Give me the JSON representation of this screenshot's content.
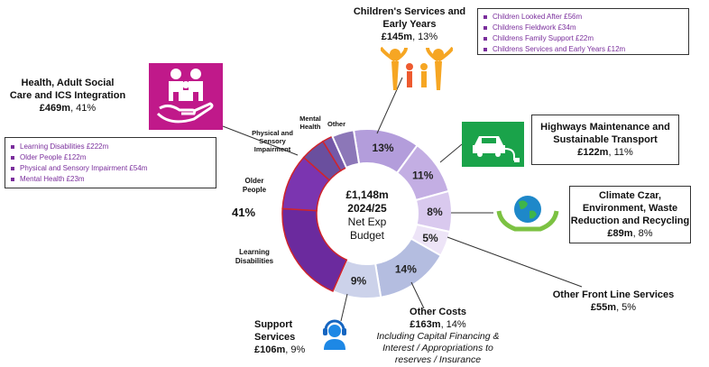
{
  "chart_data": {
    "type": "pie",
    "center": {
      "line1": "£1,148m",
      "line2": "2024/25",
      "line3": "Net Exp",
      "line4": "Budget"
    },
    "group_label": "41%",
    "slices": [
      {
        "name": "Children's Services and Early Years",
        "value": 145,
        "percent": 13,
        "pct_label": "13%",
        "color": "#b39ddb"
      },
      {
        "name": "Highways Maintenance and Sustainable Transport",
        "value": 122,
        "percent": 11,
        "pct_label": "11%",
        "color": "#c3aee3"
      },
      {
        "name": "Climate Czar, Environment, Waste Reduction and Recycling",
        "value": 89,
        "percent": 8,
        "pct_label": "8%",
        "color": "#d9c9ee"
      },
      {
        "name": "Other Front Line Services",
        "value": 55,
        "percent": 5,
        "pct_label": "5%",
        "color": "#ede4f7"
      },
      {
        "name": "Other Costs",
        "value": 163,
        "percent": 14,
        "pct_label": "14%",
        "color": "#b4bde0"
      },
      {
        "name": "Support Services",
        "value": 106,
        "percent": 9,
        "pct_label": "9%",
        "color": "#ccd2ea"
      },
      {
        "name": "Learning Disabilities",
        "value": 222,
        "pct_label": "",
        "color": "#6b2a9e"
      },
      {
        "name": "Older People",
        "value": 122,
        "pct_label": "",
        "color": "#7b35b0"
      },
      {
        "name": "Physical and Sensory Impairment",
        "value": 54,
        "pct_label": "",
        "color": "#6a4f9e"
      },
      {
        "name": "Mental Health",
        "value": 23,
        "pct_label": "",
        "color": "#7458a8"
      },
      {
        "name": "Other",
        "value": 48,
        "pct_label": "",
        "color": "#8c77b8"
      }
    ]
  },
  "labels": {
    "health": {
      "title1": "Health, Adult Social",
      "title2": "Care and ICS Integration",
      "amount": "£469m",
      "pct": ", 41%"
    },
    "children": {
      "title1": "Children's Services and",
      "title2": "Early Years",
      "amount": "£145m",
      "pct": ", 13%"
    },
    "highways": {
      "title1": "Highways Maintenance and",
      "title2": "Sustainable Transport",
      "amount": "£122m",
      "pct": ", 11%"
    },
    "climate": {
      "title1": "Climate Czar,",
      "title2": "Environment, Waste",
      "title3": "Reduction and Recycling",
      "amount": "£89m",
      "pct": ", 8%"
    },
    "other_front": {
      "title": "Other Front Line Services",
      "amount": "£55m",
      "pct": ", 5%"
    },
    "other_costs": {
      "title": "Other Costs",
      "amount": "£163m",
      "pct": ", 14%",
      "note1": "Including Capital Financing &",
      "note2": "Interest / Appropriations to",
      "note3": "reserves / Insurance"
    },
    "support": {
      "title1": "Support",
      "title2": "Services",
      "amount": "£106m",
      "pct": ", 9%"
    }
  },
  "segment_labels": {
    "mental_health": {
      "l1": "Mental",
      "l2": "Health"
    },
    "other": "Other",
    "physical": {
      "l1": "Physical and",
      "l2": "Sensory",
      "l3": "Impairment"
    },
    "older_people": {
      "l1": "Older",
      "l2": "People"
    },
    "learning": {
      "l1": "Learning",
      "l2": "Disabilities"
    }
  },
  "health_list": [
    "Learning Disabilities £222m",
    "Older People £122m",
    "Physical and Sensory Impairment £54m",
    "Mental Health £23m"
  ],
  "children_list": [
    "Children Looked After £56m",
    "Childrens Fieldwork £34m",
    "Childrens Family Support £22m",
    "Childrens Services and Early Years £12m"
  ],
  "icons": [
    "family-care-icon",
    "children-family-icon",
    "electric-car-icon",
    "globe-hands-icon",
    "headset-agent-icon"
  ]
}
